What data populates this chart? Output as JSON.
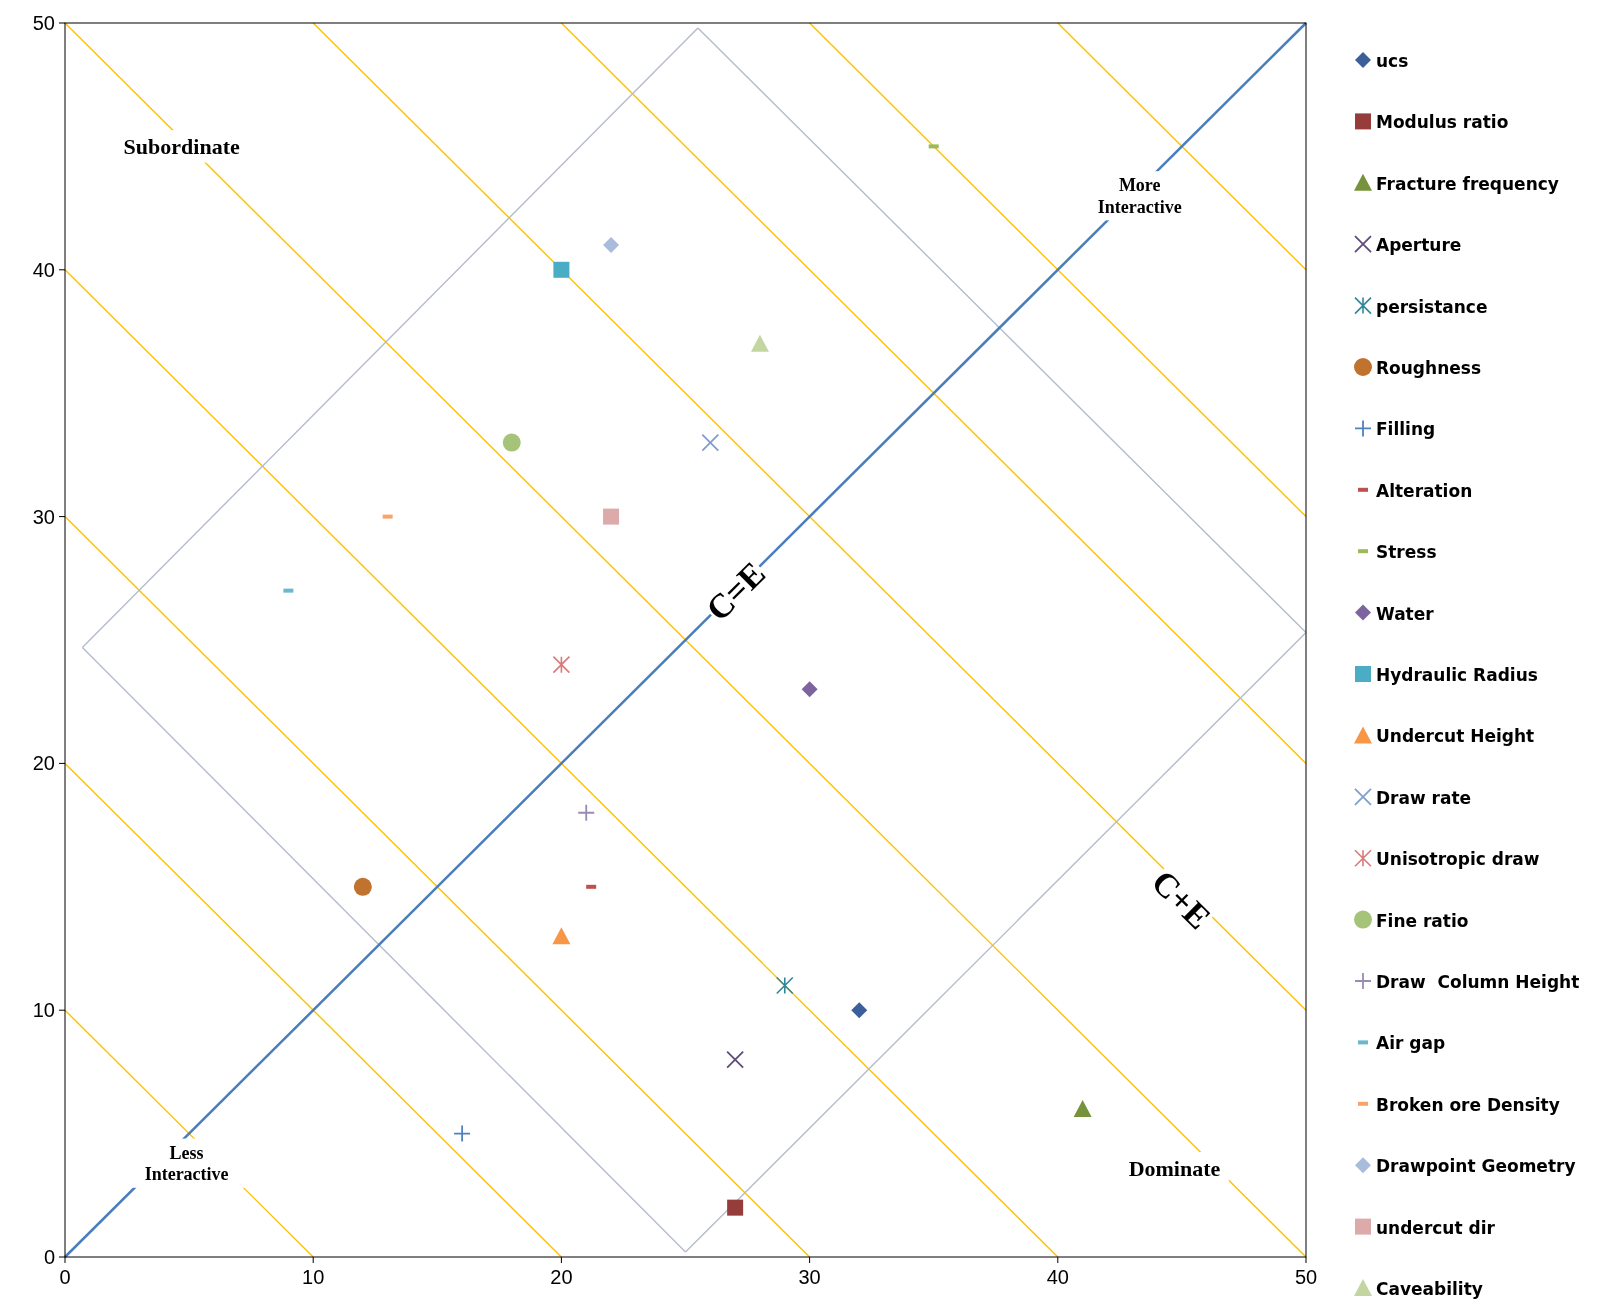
{
  "chart_data": {
    "type": "scatter",
    "xlim": [
      0,
      50
    ],
    "ylim": [
      0,
      50
    ],
    "xticks": [
      0,
      10,
      20,
      30,
      40,
      50
    ],
    "yticks": [
      0,
      10,
      20,
      30,
      40,
      50
    ],
    "grid": false,
    "legend": "right",
    "series": [
      {
        "type": "line",
        "color": "#ffc000",
        "x": [
          0,
          10
        ],
        "values": [
          10,
          0
        ]
      },
      {
        "type": "line",
        "color": "#ffc000",
        "x": [
          0,
          20
        ],
        "values": [
          20,
          0
        ]
      },
      {
        "type": "line",
        "color": "#ffc000",
        "x": [
          0,
          30
        ],
        "values": [
          30,
          0
        ]
      },
      {
        "type": "line",
        "color": "#ffc000",
        "x": [
          0,
          40
        ],
        "values": [
          40,
          0
        ]
      },
      {
        "type": "line",
        "color": "#ffc000",
        "x": [
          0,
          50
        ],
        "values": [
          50,
          0
        ]
      },
      {
        "type": "line",
        "color": "#ffc000",
        "x": [
          10,
          50
        ],
        "values": [
          50,
          10
        ]
      },
      {
        "type": "line",
        "color": "#ffc000",
        "x": [
          20,
          50
        ],
        "values": [
          50,
          20
        ]
      },
      {
        "type": "line",
        "color": "#ffc000",
        "x": [
          30,
          50
        ],
        "values": [
          50,
          30
        ]
      },
      {
        "type": "line",
        "color": "#ffc000",
        "x": [
          40,
          50
        ],
        "values": [
          50,
          40
        ]
      },
      {
        "type": "line",
        "color": "#b4bccc",
        "x": [
          0.7,
          25.5
        ],
        "values": [
          24.7,
          49.8
        ]
      },
      {
        "type": "line",
        "color": "#b4bccc",
        "x": [
          25.5,
          50
        ],
        "values": [
          49.8,
          25.3
        ]
      },
      {
        "type": "line",
        "color": "#b4bccc",
        "x": [
          50,
          25
        ],
        "values": [
          25.3,
          0.2
        ]
      },
      {
        "type": "line",
        "color": "#b4bccc",
        "x": [
          25,
          0.7
        ],
        "values": [
          0.2,
          24.7
        ]
      },
      {
        "type": "line",
        "color": "#4a7ebb",
        "x": [
          0,
          50
        ],
        "values": [
          0,
          50
        ]
      },
      {
        "name": "ucs",
        "color": "#3c5e99",
        "marker": "diamond",
        "x": [
          32
        ],
        "values": [
          10
        ]
      },
      {
        "name": "Modulus ratio",
        "color": "#963c3a",
        "marker": "square",
        "x": [
          27
        ],
        "values": [
          2
        ]
      },
      {
        "name": "Fracture frequency",
        "color": "#77923c",
        "marker": "triangle",
        "x": [
          41
        ],
        "values": [
          6
        ]
      },
      {
        "name": "Aperture",
        "color": "#5f4b7c",
        "marker": "x",
        "x": [
          27
        ],
        "values": [
          8
        ]
      },
      {
        "name": "persistance",
        "color": "#31869b",
        "marker": "cross",
        "x": [
          29
        ],
        "values": [
          11
        ]
      },
      {
        "name": "Roughness",
        "color": "#c0722f",
        "marker": "circle",
        "x": [
          12
        ],
        "values": [
          15
        ]
      },
      {
        "name": "Filling",
        "color": "#4f81bd",
        "marker": "plus",
        "x": [
          16
        ],
        "values": [
          5
        ]
      },
      {
        "name": "Alteration",
        "color": "#c0504d",
        "x": [
          21.2
        ],
        "values": [
          15
        ]
      },
      {
        "name": "Stress",
        "color": "#9bbb59",
        "x": [
          35
        ],
        "values": [
          45
        ]
      },
      {
        "name": "Water",
        "color": "#7e649e",
        "marker": "diamond",
        "x": [
          30
        ],
        "values": [
          23
        ]
      },
      {
        "name": "Hydraulic Radius",
        "color": "#4bacc6",
        "marker": "square",
        "x": [
          20
        ],
        "values": [
          40
        ]
      },
      {
        "name": "Undercut Height",
        "color": "#f79646",
        "marker": "triangle",
        "x": [
          20
        ],
        "values": [
          13
        ]
      },
      {
        "name": "Draw rate",
        "color": "#7f9fd0",
        "marker": "x",
        "x": [
          26
        ],
        "values": [
          33
        ]
      },
      {
        "name": "Unisotropic draw",
        "color": "#d9797a",
        "marker": "cross",
        "x": [
          20
        ],
        "values": [
          24
        ]
      },
      {
        "name": "Fine ratio",
        "color": "#a6c37a",
        "marker": "circle",
        "x": [
          18
        ],
        "values": [
          33
        ]
      },
      {
        "name": "Draw  Column Height",
        "color": "#9a8bb4",
        "marker": "plus",
        "x": [
          21
        ],
        "values": [
          18
        ]
      },
      {
        "name": "Air gap",
        "color": "#6cb7d0",
        "x": [
          9
        ],
        "values": [
          27
        ]
      },
      {
        "name": "Broken ore Density",
        "color": "#f9a36b",
        "x": [
          13
        ],
        "values": [
          30
        ]
      },
      {
        "name": "Drawpoint Geometry",
        "color": "#a9bcdc",
        "marker": "diamond",
        "x": [
          22
        ],
        "values": [
          41
        ]
      },
      {
        "name": "undercut dir",
        "color": "#ddaaaa",
        "marker": "square",
        "x": [
          22
        ],
        "values": [
          30
        ]
      },
      {
        "name": "Caveability",
        "color": "#c3d6a2",
        "marker": "triangle",
        "x": [
          28
        ],
        "values": [
          37
        ]
      }
    ],
    "annotations": [
      "Subordinate",
      "More Interactive",
      "Less Interactive",
      "Dominate",
      {
        "text": "C=E",
        "x": 27,
        "y": 27
      },
      "C+E"
    ]
  }
}
